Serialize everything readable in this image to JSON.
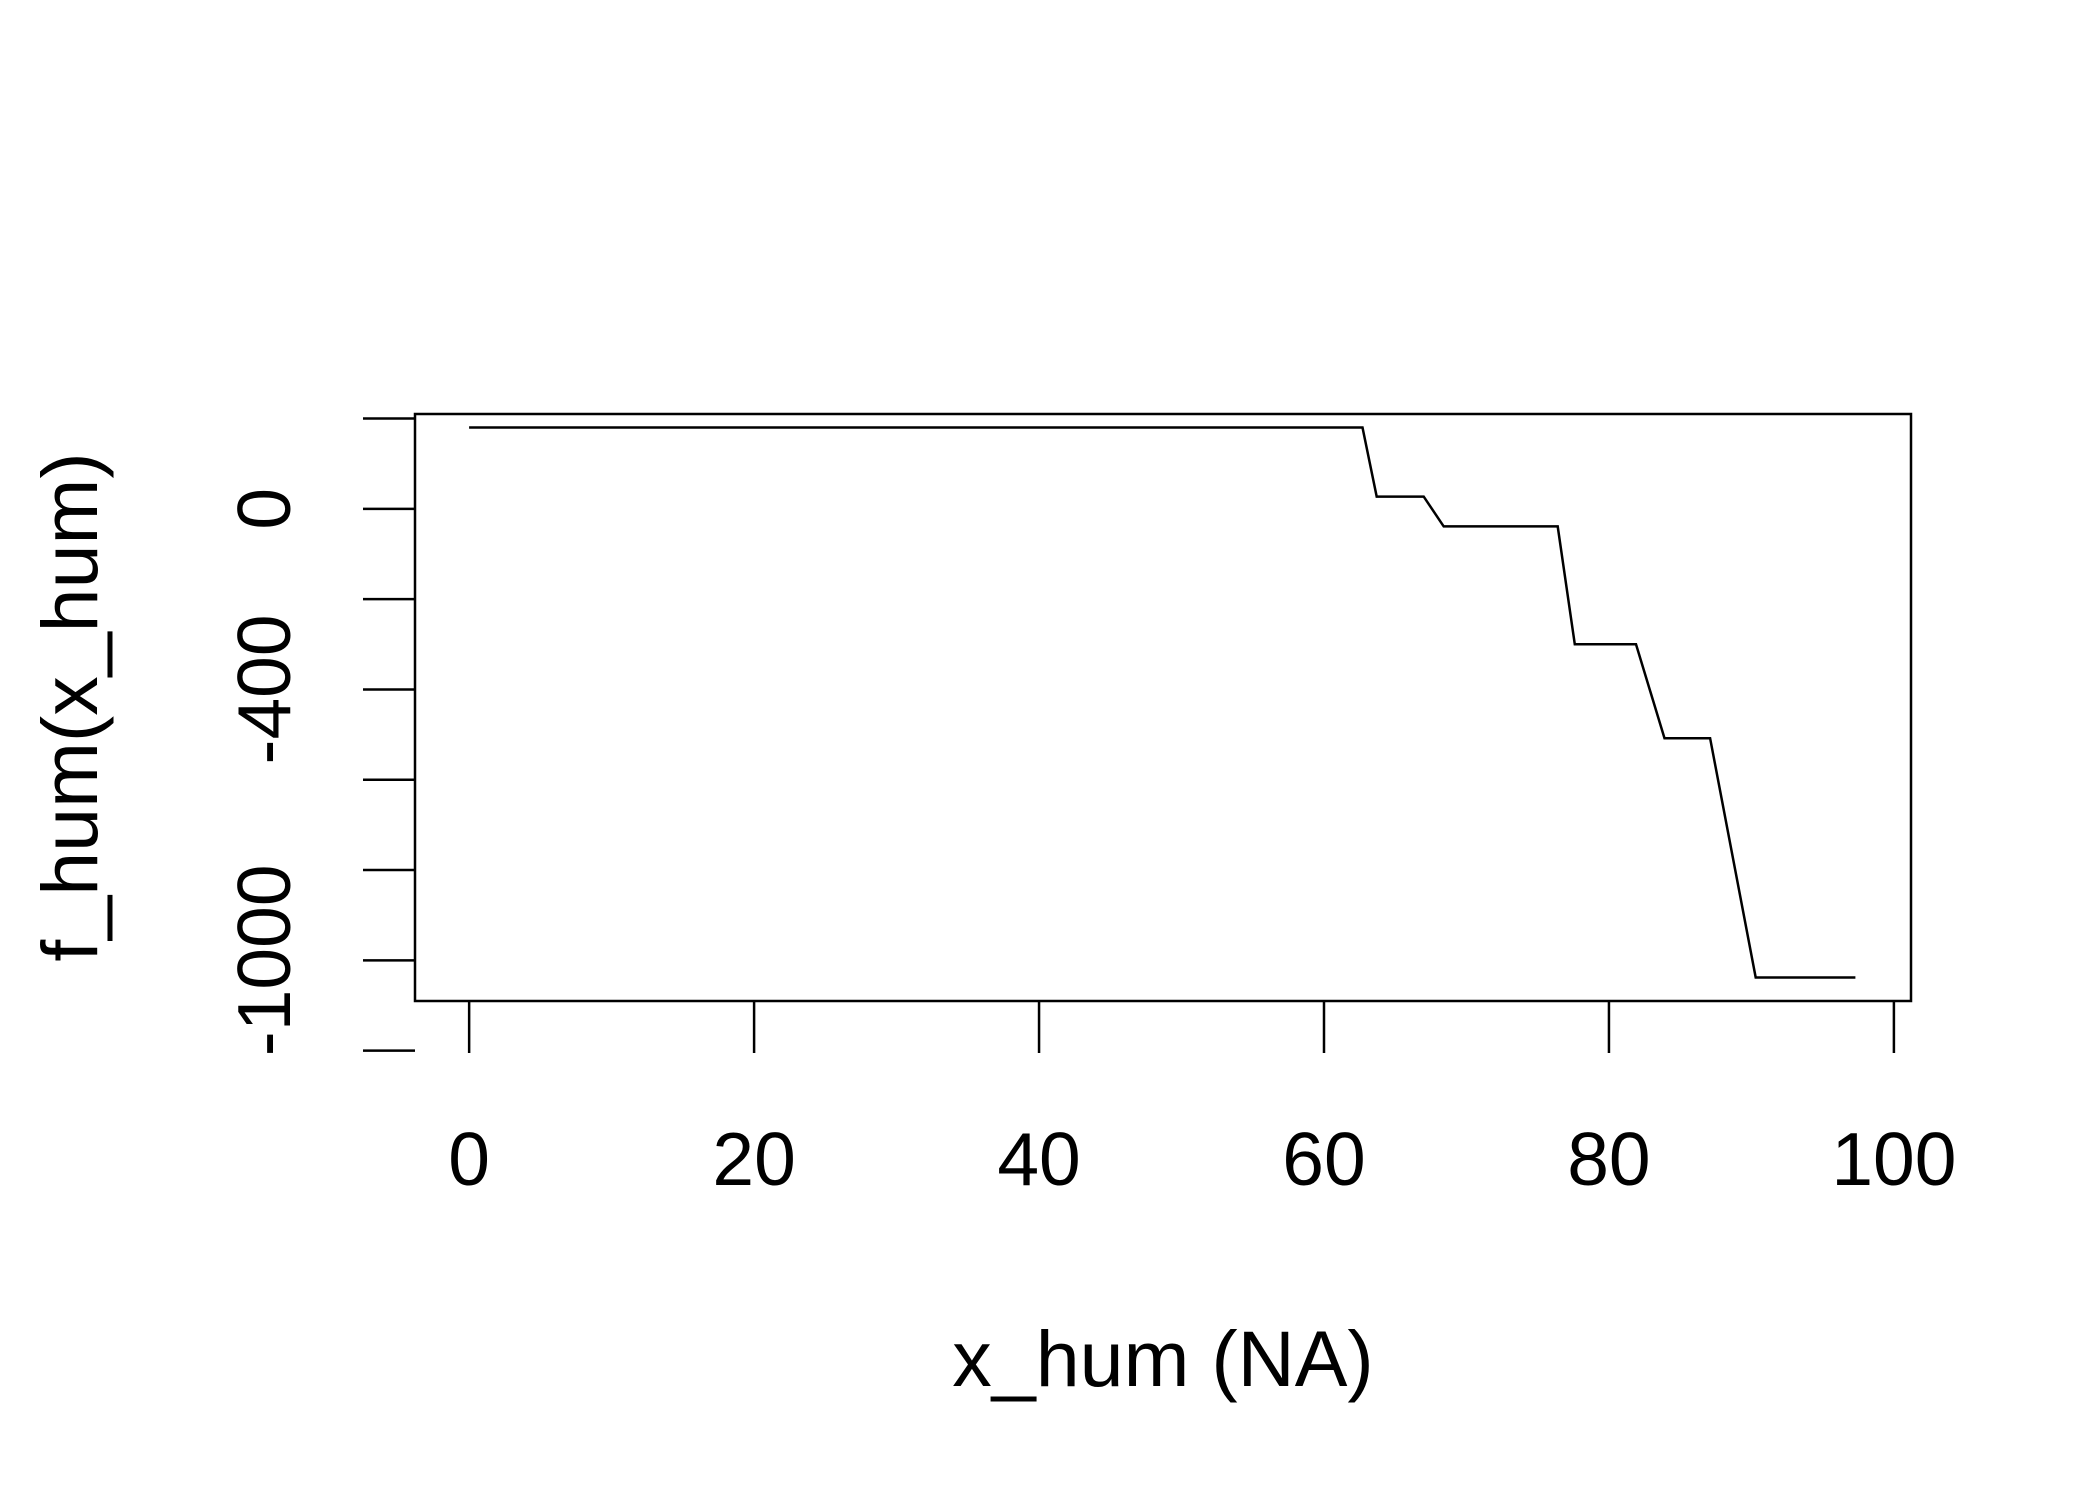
{
  "chart_data": {
    "type": "line",
    "title": "",
    "xlabel": "x_hum (NA)",
    "ylabel": "f_hum(x_hum)",
    "xlim": [
      -3.8,
      101.2
    ],
    "ylim": [
      -1090,
      210
    ],
    "x_ticks": [
      0,
      20,
      40,
      60,
      80,
      100
    ],
    "x_tick_labels": [
      "0",
      "20",
      "40",
      "60",
      "80",
      "100"
    ],
    "y_ticks": [
      -1200,
      -1000,
      -800,
      -600,
      -400,
      -200,
      0,
      200
    ],
    "y_tick_labels": [
      "-1000",
      "-400",
      "0"
    ],
    "y_tick_label_values": [
      -1000,
      -400,
      0
    ],
    "grid": false,
    "legend": "none",
    "series": [
      {
        "x": [
          0,
          62.7,
          63.7,
          67.0,
          68.4,
          76.4,
          77.6,
          81.9,
          83.9,
          87.1,
          90.3,
          97.3
        ],
        "y": [
          180,
          180,
          27,
          27,
          -39,
          -39,
          -300,
          -300,
          -508,
          -508,
          -1038,
          -1038
        ]
      }
    ],
    "line_color": "#000000"
  }
}
